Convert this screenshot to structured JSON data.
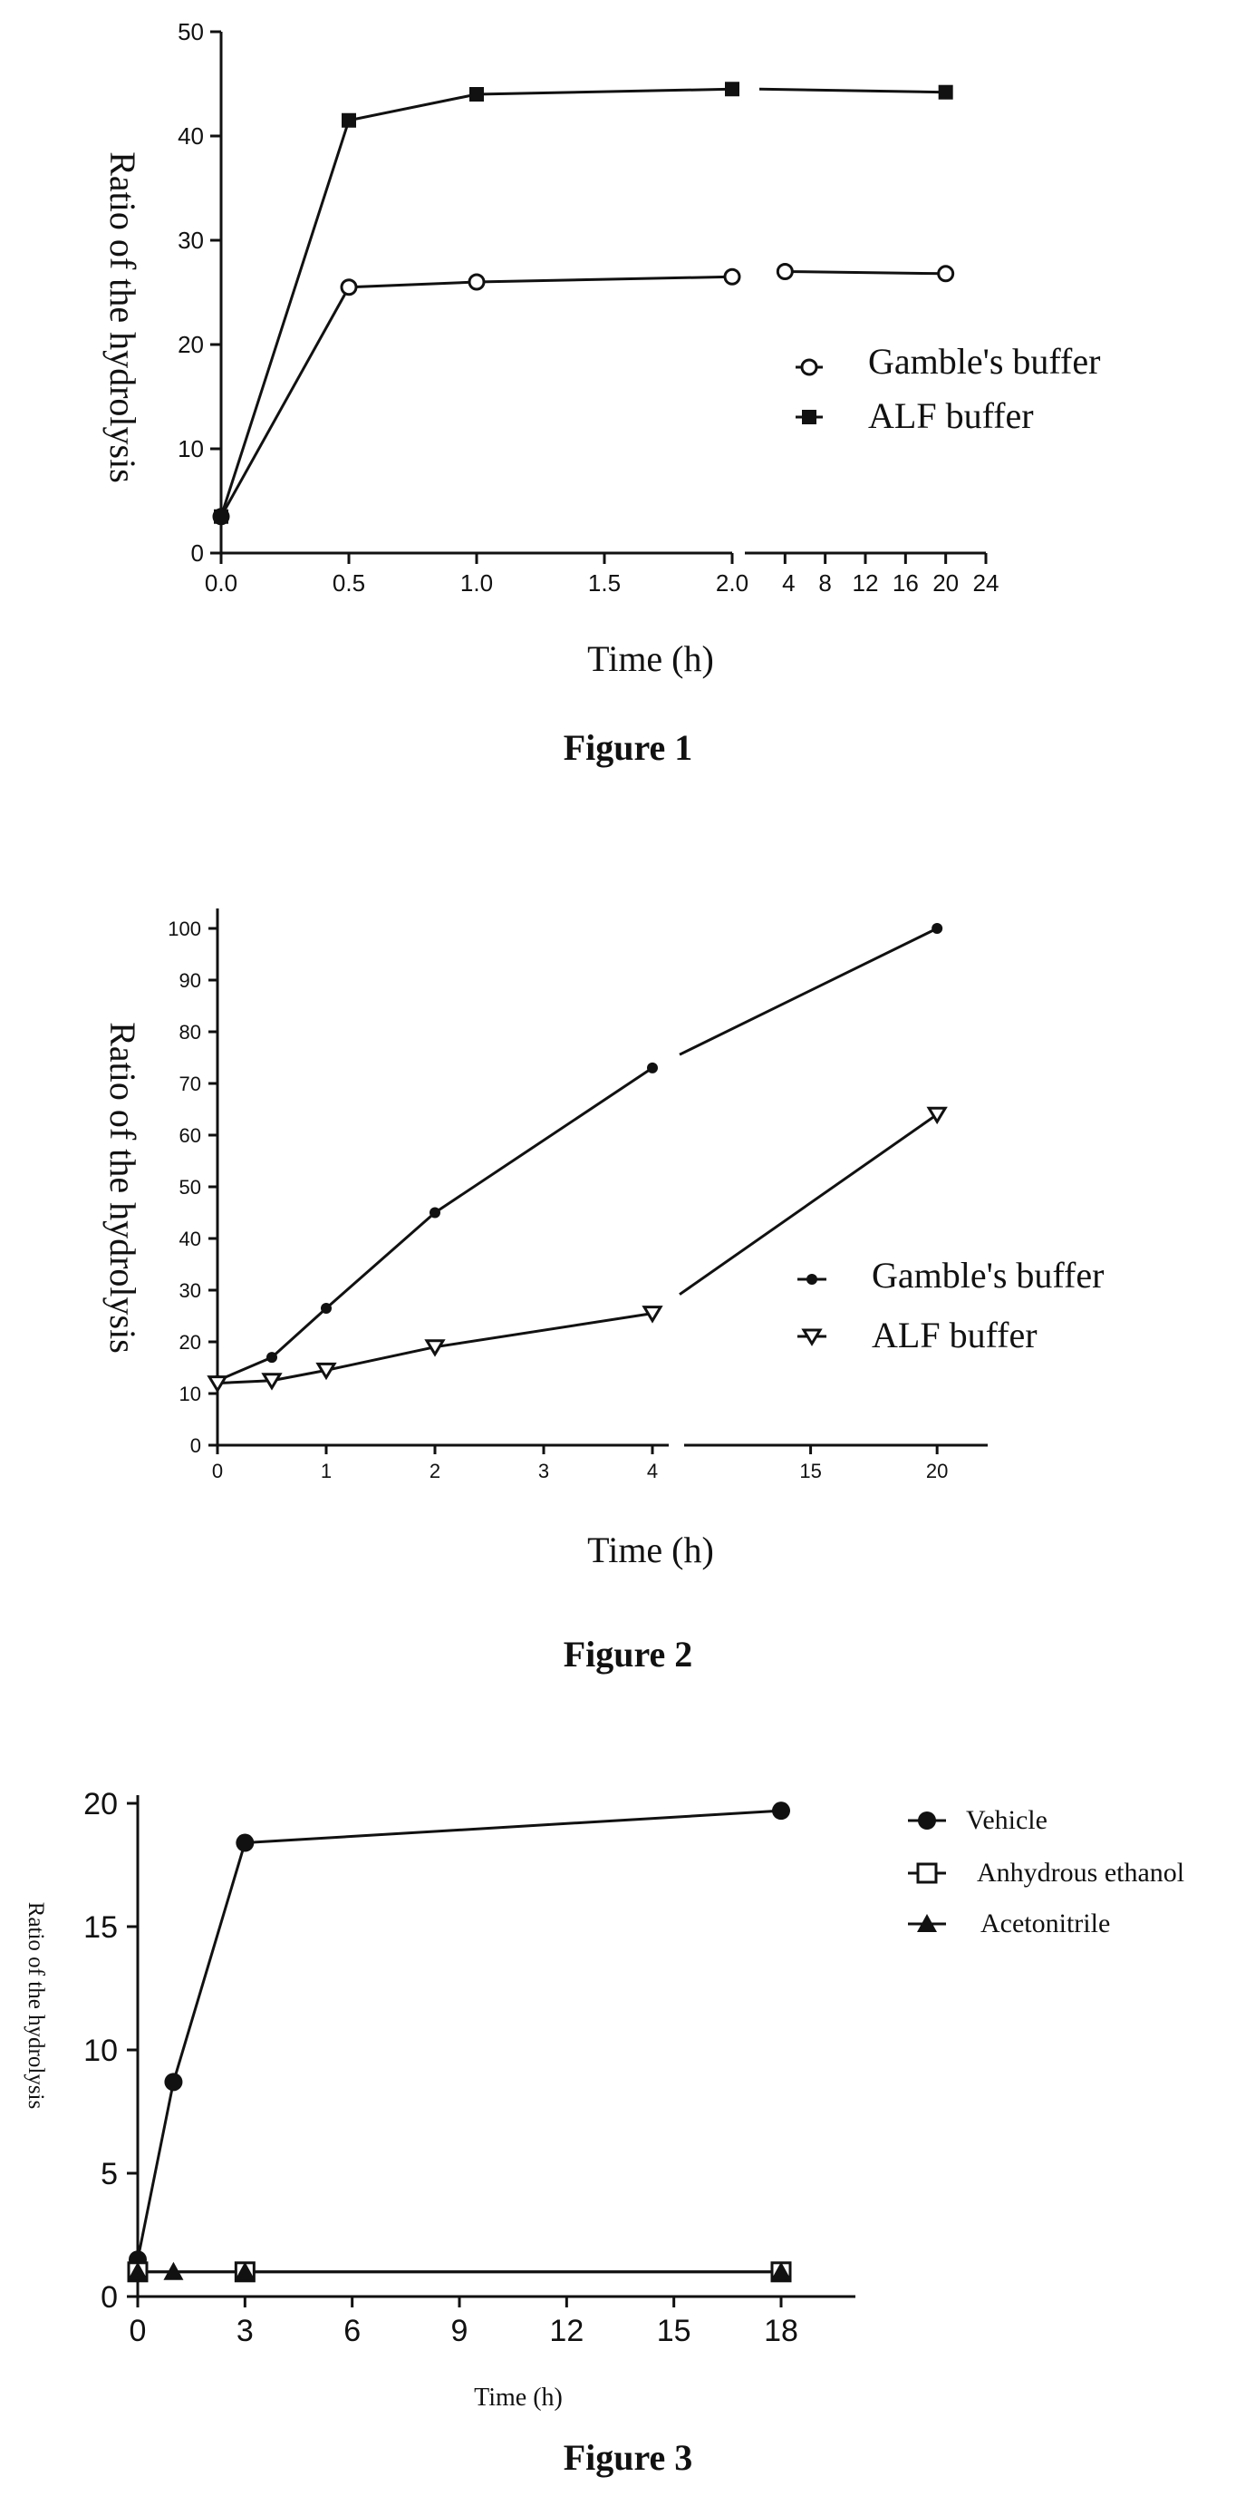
{
  "chart_data": [
    {
      "type": "line",
      "xlabel": "Time (h)",
      "ylabel": "Ratio of the hydrolysis",
      "caption": "Figure 1",
      "ylim": [
        0,
        50
      ],
      "yticks": [
        "0",
        "10",
        "20",
        "30",
        "40",
        "50"
      ],
      "x_segment_1": {
        "range": [
          0,
          2
        ],
        "tick_labels": [
          "0.0",
          "0.5",
          "1.0",
          "1.5",
          "2.0"
        ]
      },
      "x_segment_2": {
        "range": [
          0,
          24
        ],
        "tick_labels": [
          "4",
          "8",
          "12",
          "16",
          "20",
          "24"
        ]
      },
      "x_axis_break": true,
      "series": [
        {
          "name": "Gamble's buffer",
          "marker": "open-circle",
          "points": [
            [
              0,
              3.5
            ],
            [
              0.5,
              25.5
            ],
            [
              1.0,
              26
            ],
            [
              2.0,
              26.5
            ],
            [
              4,
              27
            ],
            [
              20,
              26.8
            ]
          ]
        },
        {
          "name": "ALF buffer",
          "marker": "filled-square",
          "points": [
            [
              0,
              3.5
            ],
            [
              0.5,
              41.5
            ],
            [
              1.0,
              44
            ],
            [
              2.0,
              44.5
            ],
            [
              20,
              44.2
            ]
          ]
        }
      ],
      "legend_position": "right"
    },
    {
      "type": "line",
      "xlabel": "Time (h)",
      "ylabel": "Ratio of the hydrolysis",
      "caption": "Figure 2",
      "ylim": [
        0,
        100
      ],
      "yticks": [
        "0",
        "10",
        "20",
        "30",
        "40",
        "50",
        "60",
        "70",
        "80",
        "90",
        "100"
      ],
      "x_segment_1": {
        "range": [
          0,
          4
        ],
        "tick_labels": [
          "0",
          "1",
          "2",
          "3",
          "4"
        ]
      },
      "x_segment_2": {
        "range": [
          10,
          22
        ],
        "tick_labels": [
          "15",
          "20"
        ]
      },
      "x_axis_break": true,
      "series": [
        {
          "name": "Gamble's buffer",
          "marker": "filled-dot",
          "points": [
            [
              0,
              12.5
            ],
            [
              0.5,
              17
            ],
            [
              1,
              26.5
            ],
            [
              2,
              45
            ],
            [
              4,
              73
            ],
            [
              20,
              100
            ]
          ]
        },
        {
          "name": "ALF buffer",
          "marker": "open-triangle-down",
          "points": [
            [
              0,
              12
            ],
            [
              0.5,
              12.5
            ],
            [
              1,
              14.5
            ],
            [
              2,
              19
            ],
            [
              4,
              25.5
            ],
            [
              20,
              64
            ]
          ]
        }
      ],
      "legend_position": "right"
    },
    {
      "type": "line",
      "xlabel": "Time (h)",
      "ylabel": "Ratio of the hydrolysis",
      "caption": "Figure 3",
      "ylim": [
        0,
        20
      ],
      "xlim": [
        0,
        21
      ],
      "yticks": [
        "0",
        "5",
        "10",
        "15",
        "20"
      ],
      "xticks": [
        "0",
        "3",
        "6",
        "9",
        "12",
        "15",
        "18"
      ],
      "series": [
        {
          "name": "Vehicle",
          "marker": "filled-circle",
          "points": [
            [
              0,
              1.5
            ],
            [
              1,
              8.7
            ],
            [
              3,
              18.4
            ],
            [
              18,
              19.7
            ]
          ]
        },
        {
          "name": "Anhydrous ethanol",
          "marker": "open-square",
          "points": [
            [
              0,
              1.0
            ],
            [
              3,
              1.0
            ],
            [
              18,
              1.0
            ]
          ]
        },
        {
          "name": "Acetonitrile",
          "marker": "filled-triangle",
          "points": [
            [
              0,
              1.0
            ],
            [
              1,
              1.0
            ],
            [
              3,
              1.0
            ],
            [
              18,
              1.0
            ]
          ]
        }
      ],
      "legend_position": "top-right"
    }
  ]
}
